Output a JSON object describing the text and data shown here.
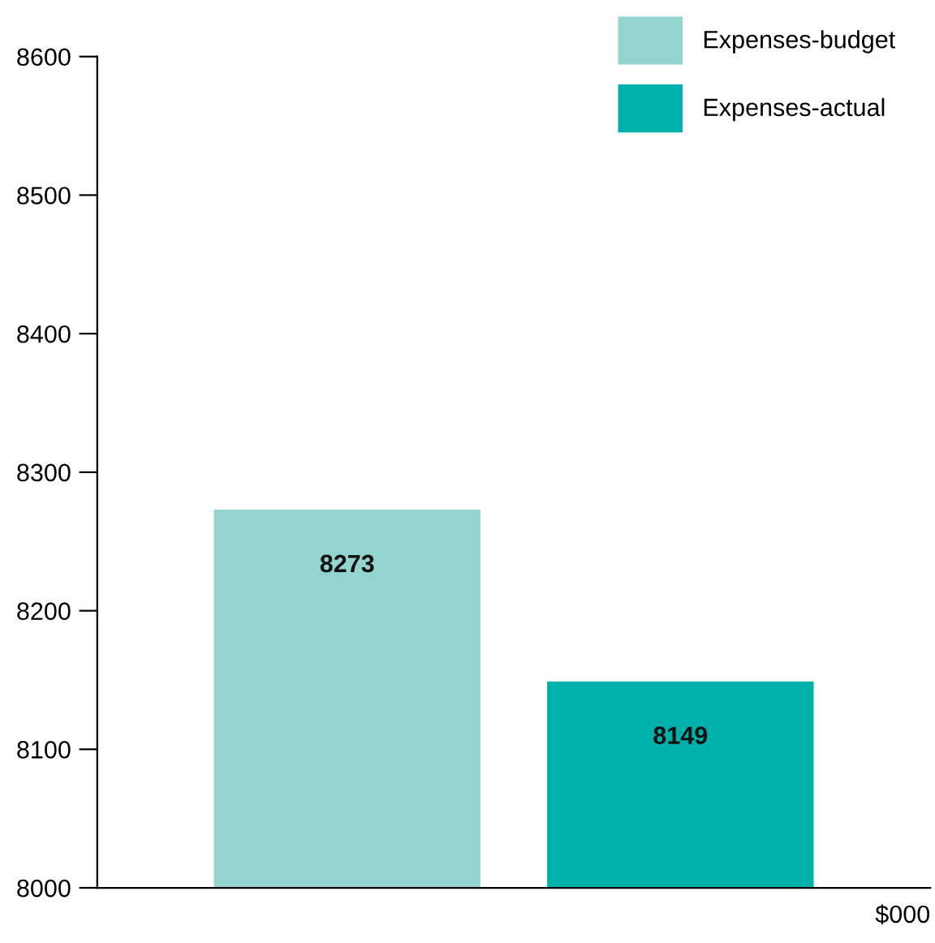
{
  "chart_data": {
    "type": "bar",
    "categories": [
      null
    ],
    "series": [
      {
        "name": "Expenses-budget",
        "color": "#93d3d0",
        "values": [
          8273
        ]
      },
      {
        "name": "Expenses-actual",
        "color": "#00b0ab",
        "values": [
          8149
        ]
      }
    ],
    "ylim": [
      8000,
      8600
    ],
    "yticks": [
      8000,
      8100,
      8200,
      8300,
      8400,
      8500,
      8600
    ],
    "xlabel": "$000",
    "data_labels": true,
    "legend": "top right",
    "grid": false
  }
}
